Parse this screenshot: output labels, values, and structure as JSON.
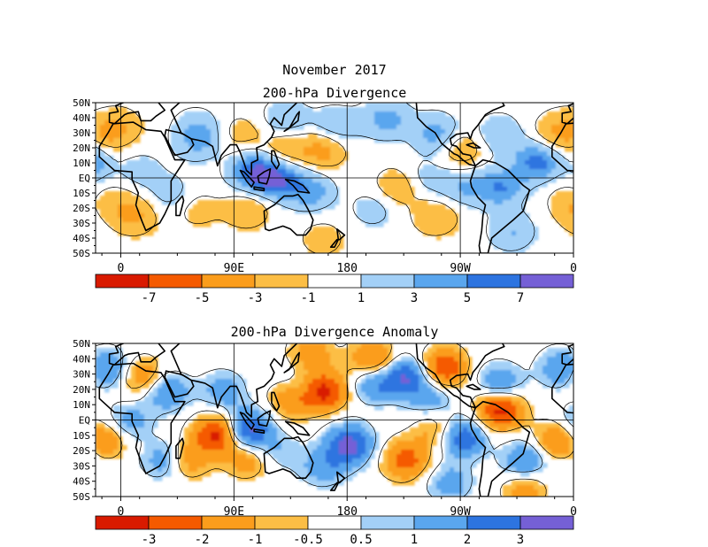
{
  "figure_title": "November 2017",
  "colors": {
    "neg4": "#d91a00",
    "neg3": "#f55a00",
    "neg2": "#fb9d1c",
    "neg1": "#fcbe45",
    "zero": "#ffffff",
    "pos1": "#a3d0f7",
    "pos2": "#5aa6ee",
    "pos3": "#2d74e0",
    "pos4": "#7560d6",
    "land": "#000000"
  },
  "chart_data": [
    {
      "type": "heatmap",
      "title": "200-hPa Divergence",
      "x_ticks": [
        "0",
        "90E",
        "180",
        "90W",
        "0"
      ],
      "y_ticks": [
        "50N",
        "40N",
        "30N",
        "20N",
        "10N",
        "EQ",
        "10S",
        "20S",
        "30S",
        "40S",
        "50S"
      ],
      "x_range": [
        -20,
        360
      ],
      "y_range": [
        -50,
        50
      ],
      "colorbar_labels": [
        "-7",
        "-5",
        "-3",
        "-1",
        "1",
        "3",
        "5",
        "7"
      ],
      "contour_levels": [
        -9,
        -7,
        -5,
        -3,
        -1,
        1,
        3,
        5,
        7,
        9
      ],
      "features": [
        {
          "lon": 105,
          "lat": 5,
          "value": 7
        },
        {
          "lon": 125,
          "lat": 0,
          "value": 6
        },
        {
          "lon": 150,
          "lat": -8,
          "value": 4
        },
        {
          "lon": 330,
          "lat": 12,
          "value": 6
        },
        {
          "lon": 300,
          "lat": -5,
          "value": 5
        },
        {
          "lon": 270,
          "lat": -5,
          "value": 3
        },
        {
          "lon": 40,
          "lat": -10,
          "value": 2
        },
        {
          "lon": 15,
          "lat": 5,
          "value": 2
        },
        {
          "lon": 210,
          "lat": 40,
          "value": 4
        },
        {
          "lon": 250,
          "lat": 30,
          "value": 4
        },
        {
          "lon": 300,
          "lat": 30,
          "value": 3
        },
        {
          "lon": 170,
          "lat": 35,
          "value": 3
        },
        {
          "lon": 60,
          "lat": 25,
          "value": 3
        },
        {
          "lon": 60,
          "lat": 35,
          "value": 2
        },
        {
          "lon": 130,
          "lat": 40,
          "value": 3
        },
        {
          "lon": 200,
          "lat": -20,
          "value": 2
        },
        {
          "lon": 240,
          "lat": 0,
          "value": 2
        },
        {
          "lon": 310,
          "lat": -35,
          "value": 3
        },
        {
          "lon": 160,
          "lat": 20,
          "value": -4
        },
        {
          "lon": 130,
          "lat": 20,
          "value": -3
        },
        {
          "lon": 100,
          "lat": -20,
          "value": -3
        },
        {
          "lon": 220,
          "lat": -5,
          "value": -3
        },
        {
          "lon": 250,
          "lat": -25,
          "value": -3
        },
        {
          "lon": 270,
          "lat": 20,
          "value": -3
        },
        {
          "lon": 345,
          "lat": 30,
          "value": -3
        },
        {
          "lon": 10,
          "lat": -25,
          "value": -3
        },
        {
          "lon": 60,
          "lat": -20,
          "value": -2
        },
        {
          "lon": 95,
          "lat": 30,
          "value": -2
        },
        {
          "lon": 0,
          "lat": 35,
          "value": -2
        },
        {
          "lon": 160,
          "lat": -40,
          "value": -2
        },
        {
          "lon": 355,
          "lat": -15,
          "value": -2
        }
      ]
    },
    {
      "type": "heatmap",
      "title": "200-hPa Divergence Anomaly",
      "x_ticks": [
        "0",
        "90E",
        "180",
        "90W",
        "0"
      ],
      "y_ticks": [
        "50N",
        "40N",
        "30N",
        "20N",
        "10N",
        "EQ",
        "10S",
        "20S",
        "30S",
        "40S",
        "50S"
      ],
      "x_range": [
        -20,
        360
      ],
      "y_range": [
        -50,
        50
      ],
      "colorbar_labels": [
        "-3",
        "-2",
        "-1",
        "-0.5",
        "0.5",
        "1",
        "2",
        "3"
      ],
      "contour_levels": [
        -4,
        -3,
        -2,
        -1,
        -0.5,
        0.5,
        1,
        2,
        3,
        4
      ],
      "features": [
        {
          "lon": 100,
          "lat": -5,
          "value": 3.5
        },
        {
          "lon": 180,
          "lat": -15,
          "value": 3.5
        },
        {
          "lon": 225,
          "lat": 30,
          "value": 3
        },
        {
          "lon": 200,
          "lat": 25,
          "value": 2
        },
        {
          "lon": 270,
          "lat": -10,
          "value": 3
        },
        {
          "lon": 300,
          "lat": 25,
          "value": 2
        },
        {
          "lon": 35,
          "lat": 20,
          "value": 2
        },
        {
          "lon": 35,
          "lat": -25,
          "value": 2
        },
        {
          "lon": 140,
          "lat": 20,
          "value": 1.5
        },
        {
          "lon": 160,
          "lat": -30,
          "value": 1.5
        },
        {
          "lon": 5,
          "lat": 0,
          "value": 1.5
        },
        {
          "lon": 245,
          "lat": 15,
          "value": 1.5
        },
        {
          "lon": 320,
          "lat": -25,
          "value": 2
        },
        {
          "lon": 350,
          "lat": 35,
          "value": 2
        },
        {
          "lon": 80,
          "lat": 20,
          "value": 1.5
        },
        {
          "lon": 260,
          "lat": -40,
          "value": 1.5
        },
        {
          "lon": 160,
          "lat": 20,
          "value": -3.5
        },
        {
          "lon": 135,
          "lat": 15,
          "value": -2.5
        },
        {
          "lon": 75,
          "lat": -8,
          "value": -3.5
        },
        {
          "lon": 300,
          "lat": 8,
          "value": -3.5
        },
        {
          "lon": 200,
          "lat": 40,
          "value": -2.5
        },
        {
          "lon": 255,
          "lat": 35,
          "value": -3
        },
        {
          "lon": 225,
          "lat": -25,
          "value": -2.5
        },
        {
          "lon": 50,
          "lat": -25,
          "value": -2
        },
        {
          "lon": 345,
          "lat": -12,
          "value": -2
        },
        {
          "lon": 15,
          "lat": 30,
          "value": -2
        },
        {
          "lon": 100,
          "lat": -25,
          "value": -1.5
        },
        {
          "lon": 150,
          "lat": 45,
          "value": -1.5
        },
        {
          "lon": 250,
          "lat": -5,
          "value": -1.5
        },
        {
          "lon": 320,
          "lat": -45,
          "value": -1.5
        },
        {
          "lon": 125,
          "lat": -20,
          "value": 1
        }
      ]
    }
  ]
}
